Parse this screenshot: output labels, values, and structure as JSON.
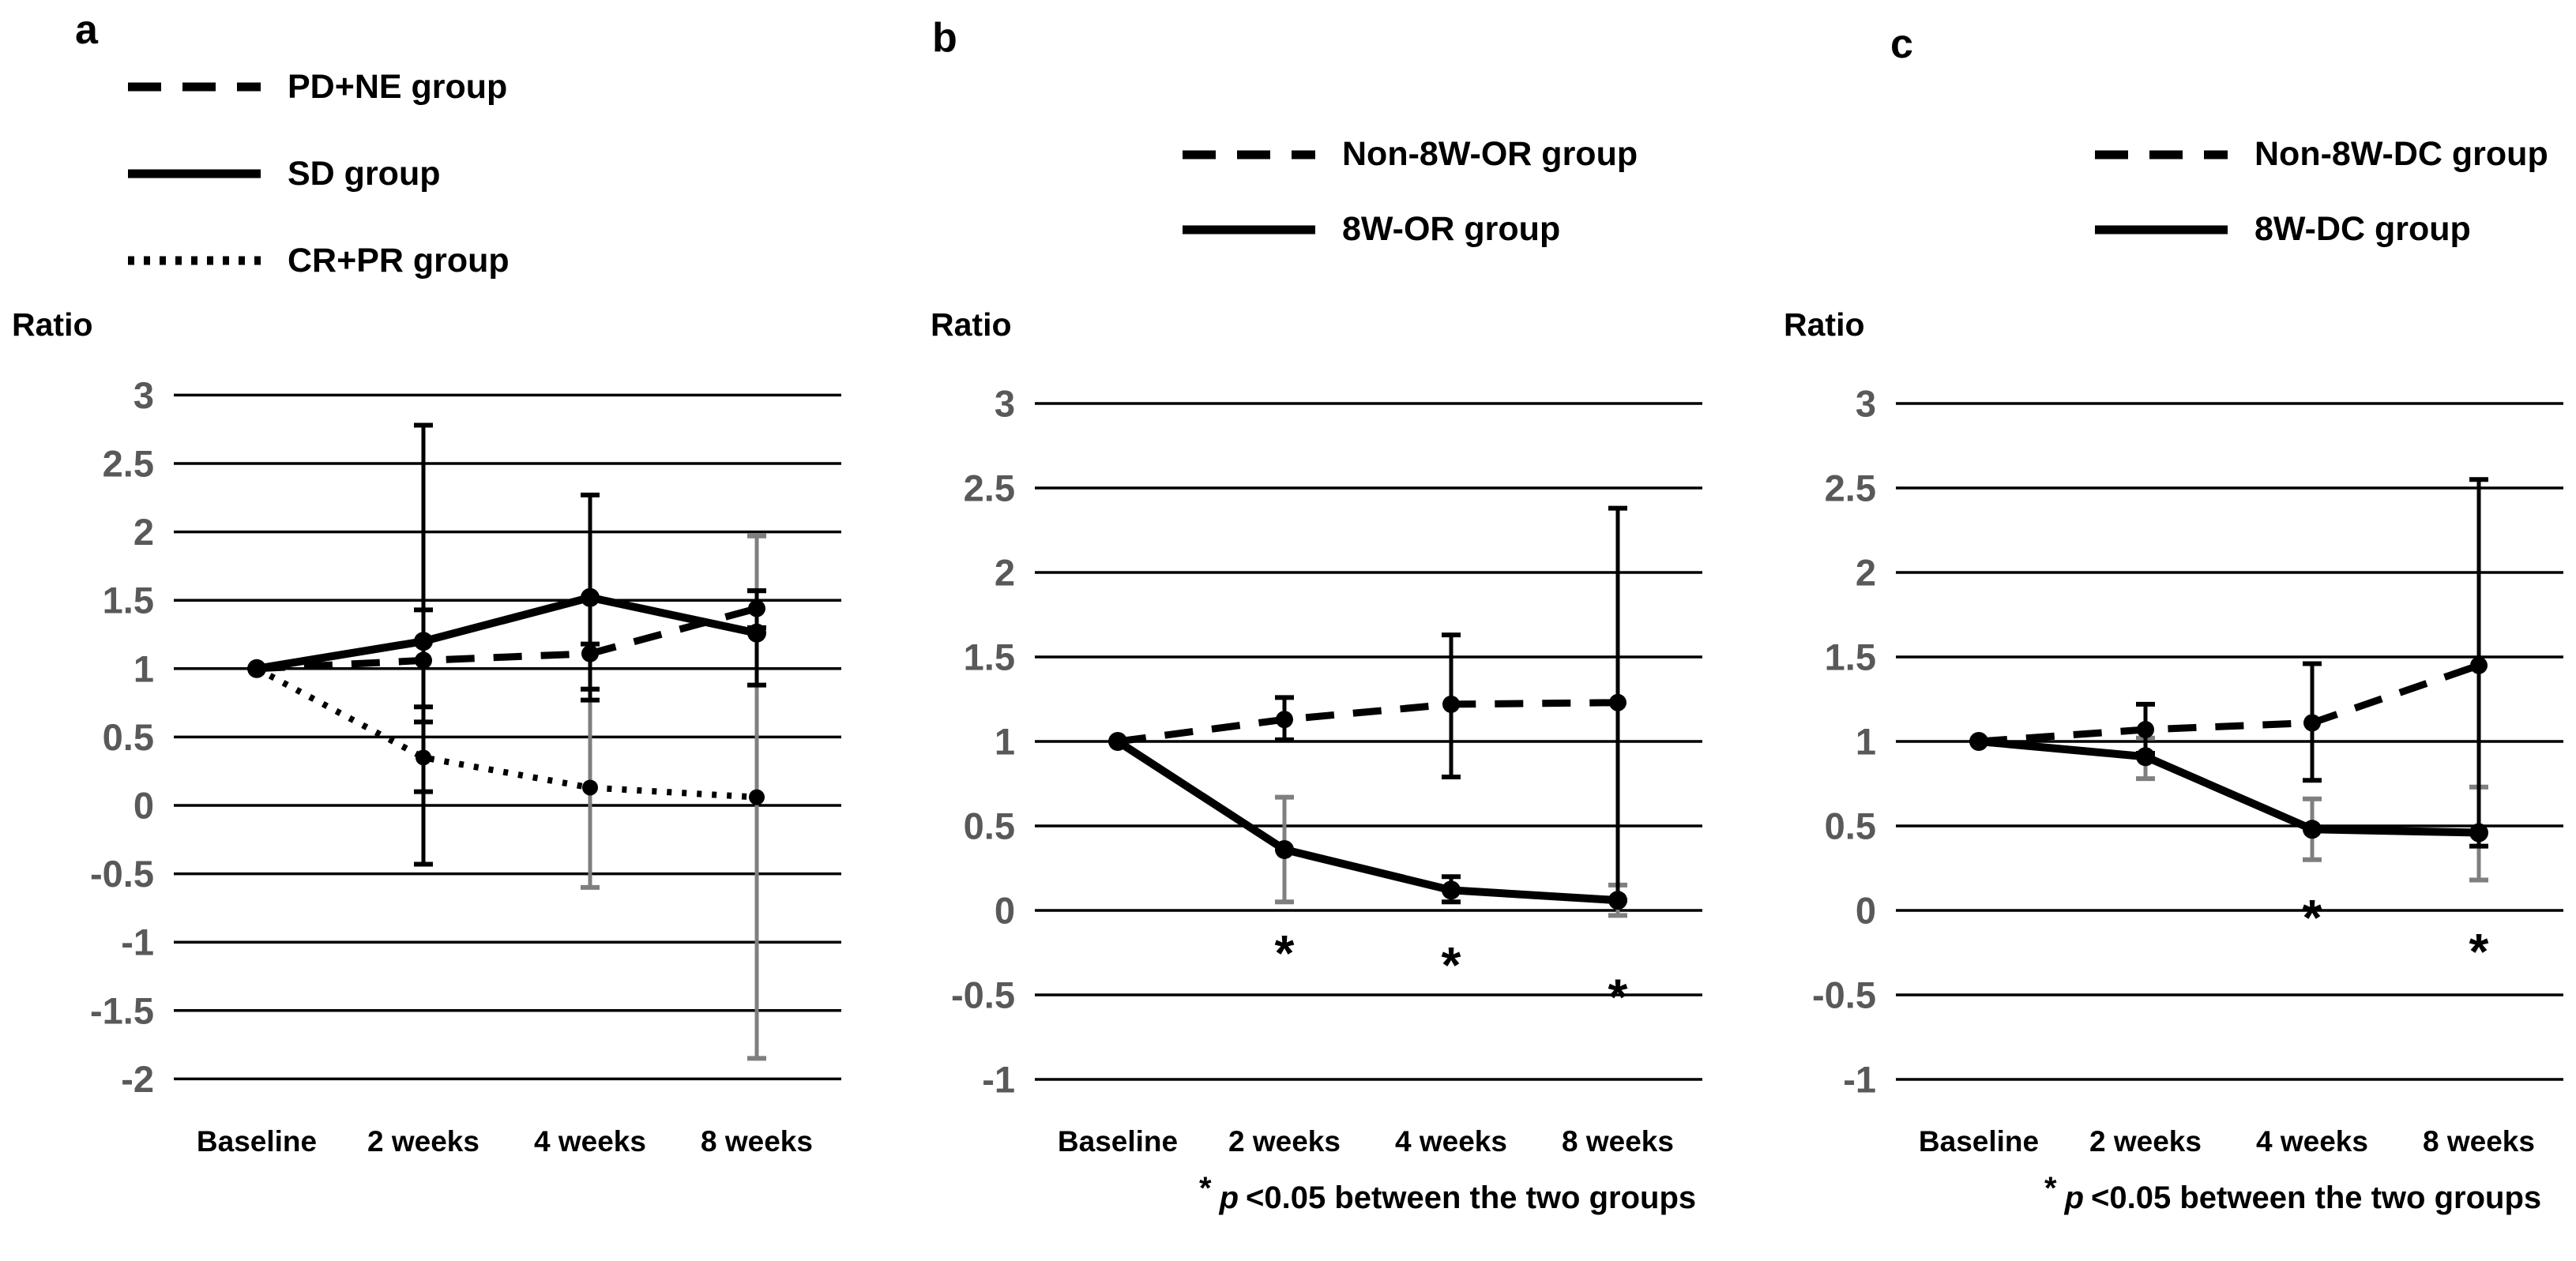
{
  "figure_bg": "#ffffff",
  "colors": {
    "series": "#000000",
    "gridline": "#000000",
    "tick_label": "#595959",
    "x_label": "#000000",
    "gray_error_bar": "#7f7f7f",
    "black_error_bar": "#000000"
  },
  "chart_data": [
    {
      "type": "line",
      "letter": "a",
      "ylabel": "Ratio",
      "categories": [
        "Baseline",
        "2 weeks",
        "4 weeks",
        "8 weeks"
      ],
      "y_ticks": [
        "3",
        "2.5",
        "2",
        "1.5",
        "1",
        "0.5",
        "0",
        "-0.5",
        "-1",
        "-1.5",
        "-2"
      ],
      "ylim": [
        -2,
        3
      ],
      "grid": true,
      "legend_position": "top-left",
      "series": [
        {
          "name": "PD+NE group",
          "style": "dashed",
          "values": [
            1.0,
            1.06,
            1.11,
            1.44
          ],
          "error_bars": [
            null,
            {
              "lo": 0.72,
              "hi": 1.43,
              "color": "black"
            },
            {
              "lo": 0.85,
              "hi": 1.18,
              "color": "black"
            },
            {
              "lo": 1.3,
              "hi": 1.57,
              "color": "black"
            }
          ]
        },
        {
          "name": "SD group",
          "style": "solid",
          "values": [
            1.0,
            1.2,
            1.52,
            1.26
          ],
          "error_bars": [
            null,
            {
              "lo": -0.43,
              "hi": 2.78,
              "color": "black"
            },
            {
              "lo": 0.77,
              "hi": 2.27,
              "color": "black"
            },
            {
              "lo": 0.88,
              "hi": 1.57,
              "color": "black"
            }
          ]
        },
        {
          "name": "CR+PR group",
          "style": "dotted",
          "values": [
            1.0,
            0.35,
            0.13,
            0.06
          ],
          "error_bars": [
            null,
            {
              "lo": 0.1,
              "hi": 0.61,
              "color": "black"
            },
            {
              "lo": -0.6,
              "hi": 0.85,
              "color": "gray"
            },
            {
              "lo": -1.85,
              "hi": 1.97,
              "color": "gray"
            }
          ]
        }
      ],
      "asterisks": [],
      "footnote": null
    },
    {
      "type": "line",
      "letter": "b",
      "ylabel": "Ratio",
      "categories": [
        "Baseline",
        "2 weeks",
        "4 weeks",
        "8 weeks"
      ],
      "y_ticks": [
        "3",
        "2.5",
        "2",
        "1.5",
        "1",
        "0.5",
        "0",
        "-0.5",
        "-1"
      ],
      "ylim": [
        -1,
        3
      ],
      "grid": true,
      "legend_position": "top-left",
      "series": [
        {
          "name": "Non-8W-OR group",
          "style": "dashed",
          "values": [
            1.0,
            1.13,
            1.22,
            1.23
          ],
          "error_bars": [
            null,
            {
              "lo": 1.01,
              "hi": 1.26,
              "color": "black"
            },
            {
              "lo": 0.79,
              "hi": 1.63,
              "color": "black"
            },
            {
              "lo": 0.06,
              "hi": 2.38,
              "color": "black"
            }
          ]
        },
        {
          "name": "8W-OR group",
          "style": "solid",
          "values": [
            1.0,
            0.36,
            0.12,
            0.06
          ],
          "error_bars": [
            null,
            {
              "lo": 0.05,
              "hi": 0.67,
              "color": "gray"
            },
            {
              "lo": 0.05,
              "hi": 0.2,
              "color": "black"
            },
            {
              "lo": -0.03,
              "hi": 0.15,
              "color": "gray"
            }
          ]
        }
      ],
      "asterisks": [
        {
          "x": 1,
          "y": -0.17
        },
        {
          "x": 2,
          "y": -0.24
        },
        {
          "x": 3,
          "y": -0.43
        }
      ],
      "footnote": {
        "star": "*",
        "p": "p",
        "rest": "<0.05 between the two groups"
      }
    },
    {
      "type": "line",
      "letter": "c",
      "ylabel": "Ratio",
      "categories": [
        "Baseline",
        "2 weeks",
        "4 weeks",
        "8 weeks"
      ],
      "y_ticks": [
        "3",
        "2.5",
        "2",
        "1.5",
        "1",
        "0.5",
        "0",
        "-0.5",
        "-1"
      ],
      "ylim": [
        -1,
        3
      ],
      "grid": true,
      "legend_position": "top-left",
      "series": [
        {
          "name": "Non-8W-DC group",
          "style": "dashed",
          "values": [
            1.0,
            1.07,
            1.11,
            1.45
          ],
          "error_bars": [
            null,
            {
              "lo": 0.93,
              "hi": 1.22,
              "color": "black"
            },
            {
              "lo": 0.77,
              "hi": 1.46,
              "color": "black"
            },
            {
              "lo": 0.38,
              "hi": 2.55,
              "color": "black"
            }
          ]
        },
        {
          "name": "8W-DC group",
          "style": "solid",
          "values": [
            1.0,
            0.91,
            0.48,
            0.46
          ],
          "error_bars": [
            null,
            {
              "lo": 0.78,
              "hi": 1.02,
              "color": "gray"
            },
            {
              "lo": 0.3,
              "hi": 0.66,
              "color": "gray"
            },
            {
              "lo": 0.18,
              "hi": 0.73,
              "color": "gray"
            }
          ]
        }
      ],
      "asterisks": [
        {
          "x": 2,
          "y": 0.04
        },
        {
          "x": 3,
          "y": -0.16
        }
      ],
      "footnote": {
        "star": "*",
        "p": "p",
        "rest": "<0.05 between the two groups"
      }
    }
  ]
}
